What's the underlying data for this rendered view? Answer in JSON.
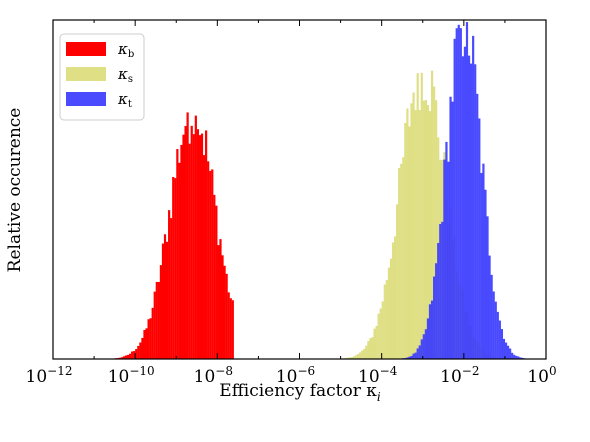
{
  "chart_data": {
    "type": "bar",
    "subtype": "overlapping histograms",
    "title": "",
    "xlabel": "Efficiency factor κ",
    "xlabel_sub": "i",
    "ylabel": "Relative occurence",
    "x_scale": "log",
    "xlim": [
      1e-12,
      1
    ],
    "ylim": [
      0,
      1.0
    ],
    "grid": false,
    "legend_position": "top-left",
    "x_ticks": [
      {
        "base": "10",
        "exp": "−12",
        "value": 1e-12
      },
      {
        "base": "10",
        "exp": "−10",
        "value": 1e-10
      },
      {
        "base": "10",
        "exp": "−8",
        "value": 1e-08
      },
      {
        "base": "10",
        "exp": "−6",
        "value": 1e-06
      },
      {
        "base": "10",
        "exp": "−4",
        "value": 0.0001
      },
      {
        "base": "10",
        "exp": "−2",
        "value": 0.01
      },
      {
        "base": "10",
        "exp": "0",
        "value": 1
      }
    ],
    "series": [
      {
        "name": "κ",
        "name_sub": "b",
        "color": "#ff0000",
        "opacity": 1.0,
        "log10_x_range": [
          -11.6,
          -7.6
        ],
        "bin_width_log10": 0.05,
        "peak_log10": -8.6,
        "peak_height": 0.74,
        "sigma_log10": 0.55,
        "values_sample": [
          {
            "x": 1e-11,
            "y": 0.005
          },
          {
            "x": 1e-10,
            "y": 0.04
          },
          {
            "x": 1e-09,
            "y": 0.52
          },
          {
            "x": 2.5e-09,
            "y": 0.74
          },
          {
            "x": 1e-08,
            "y": 0.35
          },
          {
            "x": 2.5e-08,
            "y": 0.02
          }
        ]
      },
      {
        "name": "κ",
        "name_sub": "s",
        "color": "#dcdc78",
        "opacity": 0.9,
        "log10_x_range": [
          -6.8,
          -1.2
        ],
        "bin_width_log10": 0.05,
        "peak_log10": -3.0,
        "peak_height": 0.86,
        "sigma_log10": 0.55,
        "values_sample": [
          {
            "x": 1e-06,
            "y": 0.01
          },
          {
            "x": 1e-05,
            "y": 0.04
          },
          {
            "x": 0.0001,
            "y": 0.36
          },
          {
            "x": 0.001,
            "y": 0.86
          },
          {
            "x": 0.003,
            "y": 0.6
          },
          {
            "x": 0.01,
            "y": 0.1
          }
        ]
      },
      {
        "name": "κ",
        "name_sub": "t",
        "color": "#3b3bff",
        "opacity": 0.92,
        "log10_x_range": [
          -4.5,
          0
        ],
        "bin_width_log10": 0.05,
        "peak_log10": -2.0,
        "peak_height": 1.0,
        "sigma_log10": 0.42,
        "values_sample": [
          {
            "x": 0.0001,
            "y": 0.02
          },
          {
            "x": 0.001,
            "y": 0.36
          },
          {
            "x": 0.01,
            "y": 1.0
          },
          {
            "x": 0.1,
            "y": 0.28
          },
          {
            "x": 1,
            "y": 0.02
          }
        ]
      }
    ]
  },
  "colors": {
    "frame": "#000000",
    "background": "#ffffff",
    "legend_border": "#cccccc"
  }
}
